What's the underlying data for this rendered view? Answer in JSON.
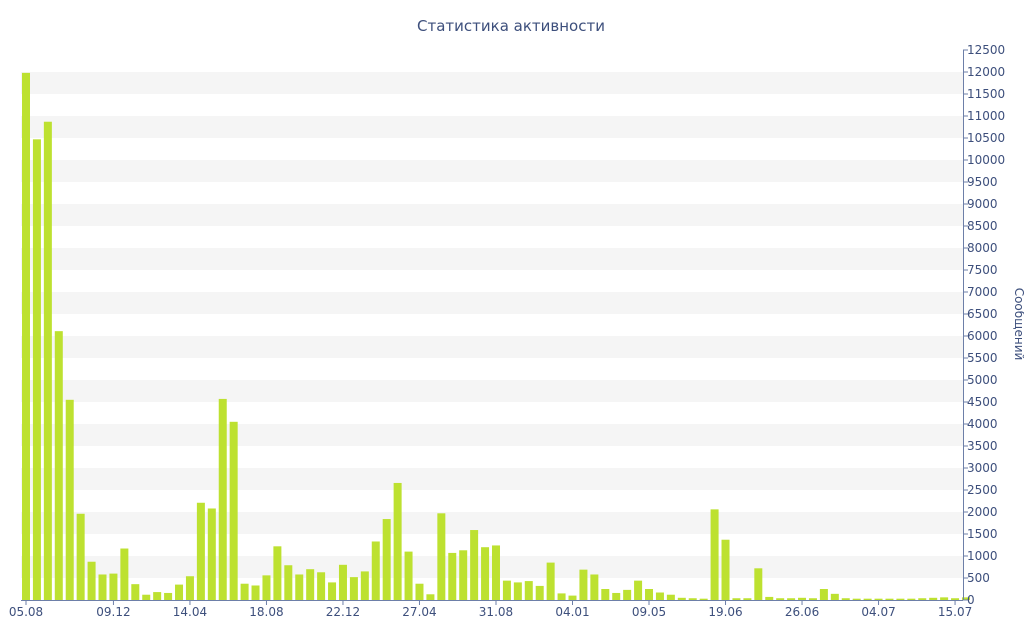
{
  "chart_data": {
    "type": "bar",
    "title": "Статистика активности",
    "ylabel": "Сообщений",
    "xlabel": "",
    "ylim": [
      0,
      12500
    ],
    "y_tick_step": 500,
    "grid": "alternating horizontal bands",
    "y_axis_side": "right",
    "colors": {
      "bar": "#bde130",
      "text": "#3d4f7c",
      "band": "#f5f5f5",
      "axis": "#6d7fa8"
    },
    "x_tick_labels": [
      "05.08",
      "09.12",
      "14.04",
      "18.08",
      "22.12",
      "27.04",
      "31.08",
      "04.01",
      "09.05",
      "19.06",
      "26.06",
      "04.07",
      "15.07"
    ],
    "x_tick_positions": [
      0,
      8,
      15,
      22,
      29,
      36,
      43,
      50,
      57,
      64,
      71,
      78,
      85
    ],
    "values": [
      11980,
      10470,
      10870,
      6110,
      4550,
      1960,
      870,
      580,
      600,
      1170,
      360,
      120,
      180,
      160,
      350,
      540,
      2210,
      2080,
      4570,
      4050,
      370,
      330,
      560,
      1220,
      790,
      580,
      700,
      630,
      400,
      800,
      520,
      650,
      1330,
      1840,
      2660,
      1100,
      370,
      130,
      1970,
      1070,
      1130,
      1590,
      1200,
      1240,
      440,
      400,
      430,
      320,
      850,
      150,
      100,
      690,
      580,
      250,
      160,
      230,
      440,
      250,
      170,
      120,
      50,
      40,
      30,
      2060,
      1370,
      40,
      40,
      720,
      70,
      40,
      40,
      50,
      40,
      250,
      140,
      40,
      30,
      30,
      30,
      30,
      30,
      30,
      40,
      50,
      60,
      40,
      60
    ]
  }
}
